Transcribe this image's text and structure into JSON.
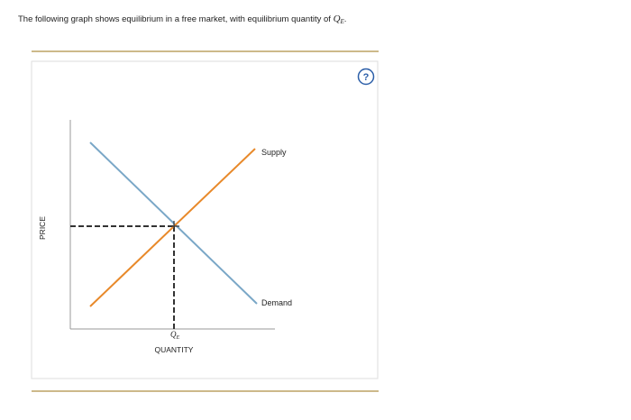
{
  "question": {
    "text": "The following graph shows equilibrium in a free market, with equilibrium quantity of",
    "symbol": "Q",
    "subscript": "E",
    "end": "."
  },
  "help_button": "?",
  "graph": {
    "y_axis_label": "PRICE",
    "x_axis_label": "QUANTITY",
    "equilibrium_label": {
      "symbol": "Q",
      "subscript": "E"
    },
    "supply_label": "Supply",
    "demand_label": "Demand"
  }
}
